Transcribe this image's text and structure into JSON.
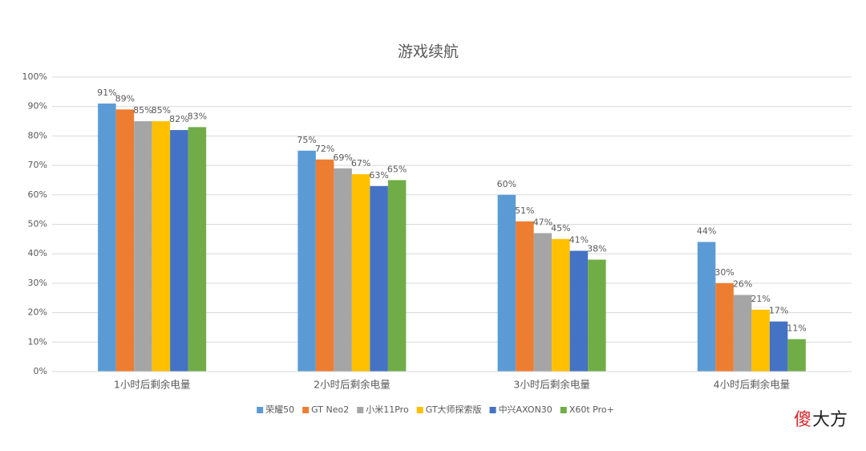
{
  "chart_data": {
    "type": "bar",
    "title": "游戏续航",
    "categories": [
      "1小时后剩余电量",
      "2小时后剩余电量",
      "3小时后剩余电量",
      "4小时后剩余电量"
    ],
    "series": [
      {
        "name": "荣耀50",
        "color": "#5b9bd5",
        "values": [
          91,
          75,
          60,
          44
        ],
        "value_labels": [
          "91%",
          "75%",
          "60%",
          "44%"
        ]
      },
      {
        "name": "GT Neo2",
        "color": "#ed7d31",
        "values": [
          89,
          72,
          51,
          30
        ],
        "value_labels": [
          "89%",
          "72%",
          "51%",
          "30%"
        ]
      },
      {
        "name": "小米11Pro",
        "color": "#a5a5a5",
        "values": [
          85,
          69,
          47,
          26
        ],
        "value_labels": [
          "85%",
          "69%",
          "47%",
          "26%"
        ]
      },
      {
        "name": "GT大师探索版",
        "color": "#ffc000",
        "values": [
          85,
          67,
          45,
          21
        ],
        "value_labels": [
          "85%",
          "67%",
          "45%",
          "21%"
        ]
      },
      {
        "name": "中兴AXON30",
        "color": "#4472c4",
        "values": [
          82,
          63,
          41,
          17
        ],
        "value_labels": [
          "82%",
          "63%",
          "41%",
          "17%"
        ]
      },
      {
        "name": "X60t Pro+",
        "color": "#70ad47",
        "values": [
          83,
          65,
          38,
          11
        ],
        "value_labels": [
          "83%",
          "65%",
          "38%",
          "11%"
        ]
      }
    ],
    "ylim": [
      0,
      100
    ],
    "yticks": [
      {
        "value": 0,
        "label": "0%"
      },
      {
        "value": 10,
        "label": "10%"
      },
      {
        "value": 20,
        "label": "20%"
      },
      {
        "value": 30,
        "label": "30%"
      },
      {
        "value": 40,
        "label": "40%"
      },
      {
        "value": 50,
        "label": "50%"
      },
      {
        "value": 60,
        "label": "60%"
      },
      {
        "value": 70,
        "label": "70%"
      },
      {
        "value": 80,
        "label": "80%"
      },
      {
        "value": 90,
        "label": "90%"
      },
      {
        "value": 100,
        "label": "100%"
      }
    ],
    "grid": true,
    "legend": "bottom"
  },
  "watermark": [
    "傻",
    "大方"
  ]
}
